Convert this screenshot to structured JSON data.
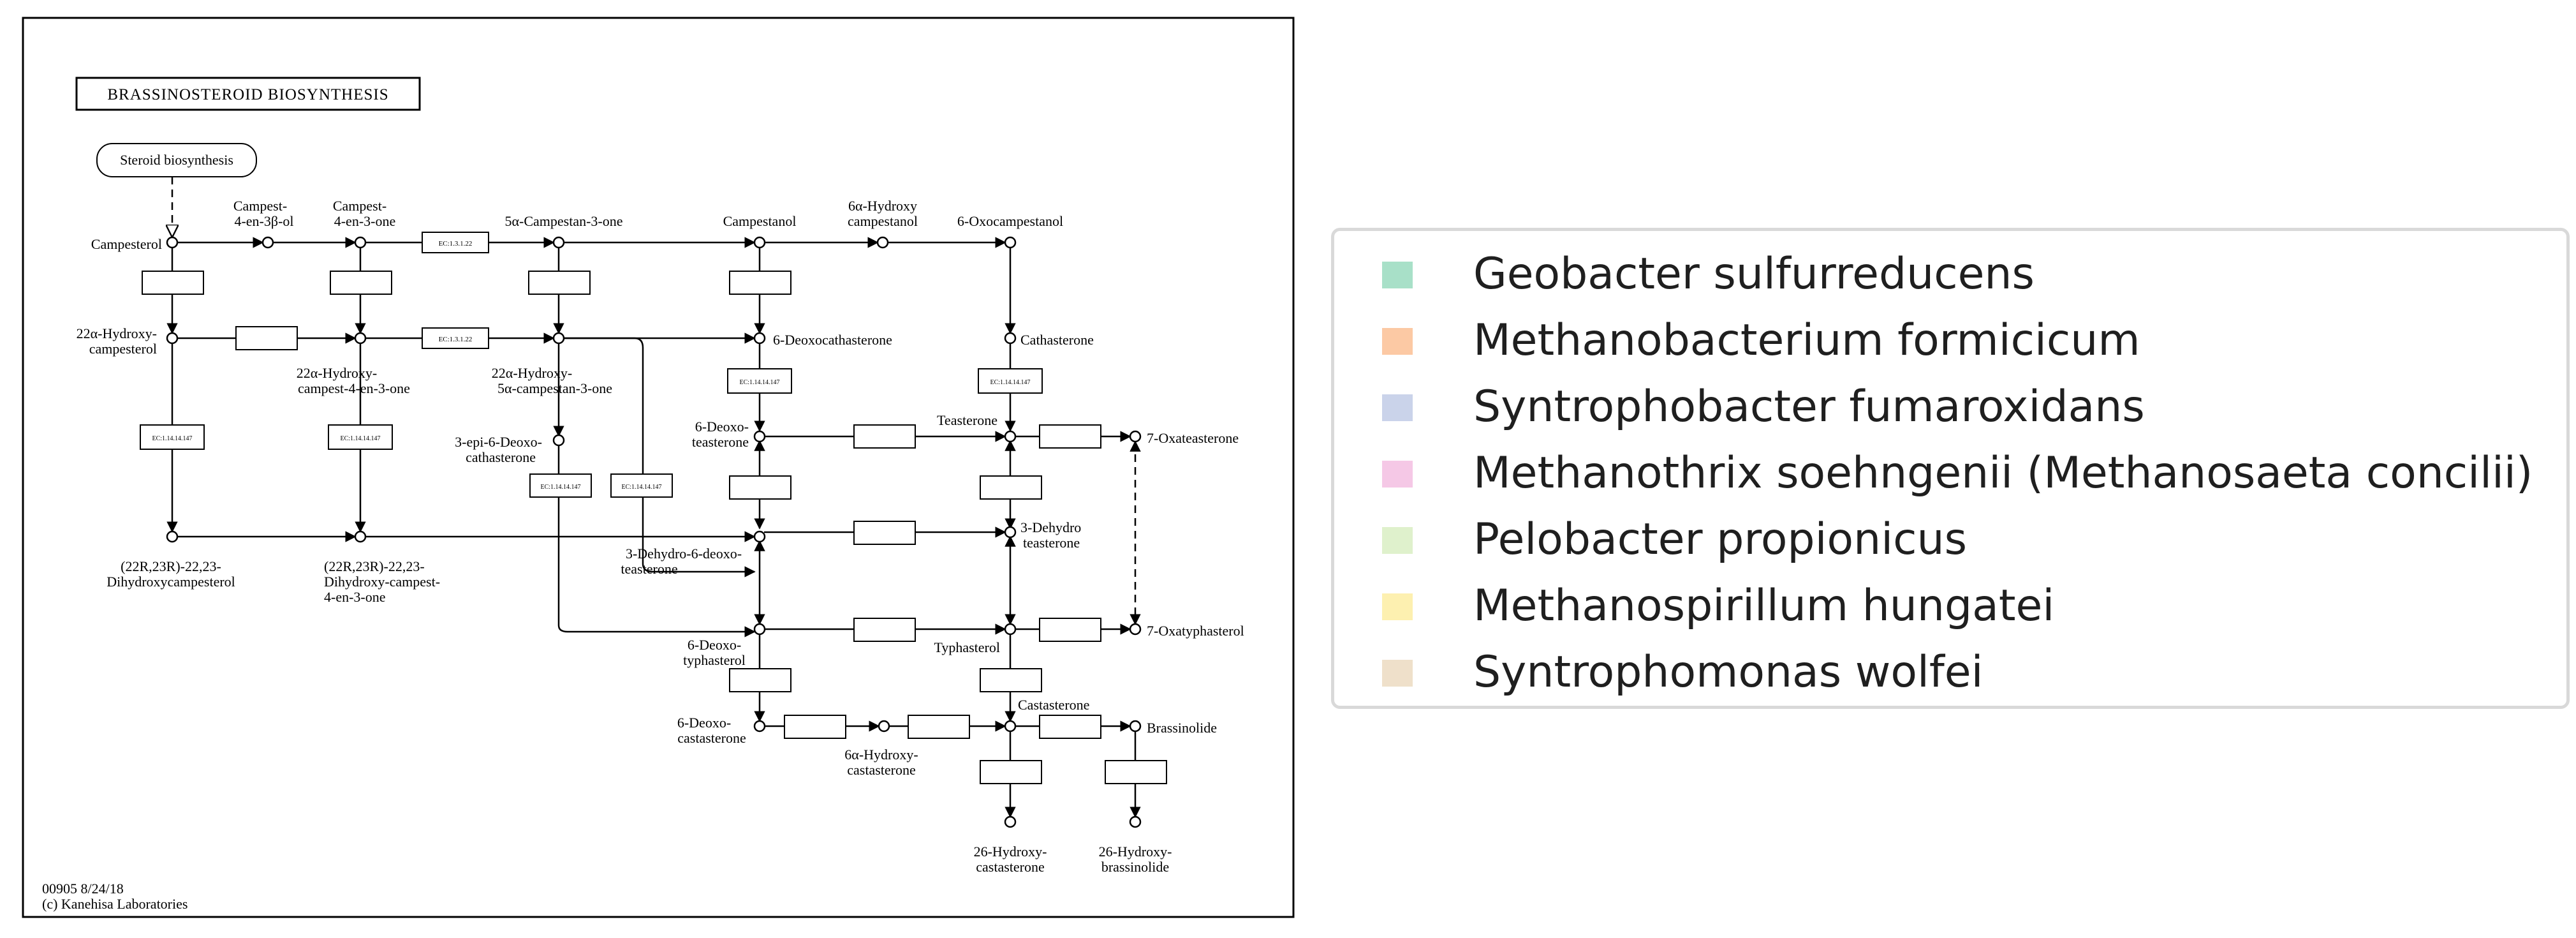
{
  "diagram": {
    "title": "BRASSINOSTEROID BIOSYNTHESIS",
    "link_box": "Steroid biosynthesis",
    "footer_id": "00905 8/24/18",
    "footer_credit": "(c) Kanehisa Laboratories",
    "ec_numbers": {
      "ec_13122": "EC:1.3.1.22",
      "ec_1141414147": "EC:1.14.14.147"
    },
    "compounds": {
      "campesterol": "Campesterol",
      "campest_4en3b_a": "Campest-",
      "campest_4en3b_b": "4-en-3β-ol",
      "campest_4en3one_a": "Campest-",
      "campest_4en3one_b": "4-en-3-one",
      "campestan3one": "5α-Campestan-3-one",
      "campestanol": "Campestanol",
      "hydroxycampestanol_a": "6α-Hydroxy",
      "hydroxycampestanol_b": "campestanol",
      "oxocampestanol": "6-Oxocampestanol",
      "hydroxycampesterol_a": "22α-Hydroxy-",
      "hydroxycampesterol_b": "campesterol",
      "hydroxycampest4en3one_a": "22α-Hydroxy-",
      "hydroxycampest4en3one_b": "campest-4-en-3-one",
      "hydroxycampestan3one_a": "22α-Hydroxy-",
      "hydroxycampestan3one_b": "5α-campestan-3-one",
      "deoxocathasterone": "6-Deoxocathasterone",
      "cathasterone": "Cathasterone",
      "epideoxocathasterone_a": "3-epi-6-Deoxo-",
      "epideoxocathasterone_b": "cathasterone",
      "deoxoteasterone_a": "6-Deoxo-",
      "deoxoteasterone_b": "teasterone",
      "teasterone": "Teasterone",
      "oxateasterone": "7-Oxateasterone",
      "dihydroxycampesterol_a": "(22R,23R)-22,23-",
      "dihydroxycampesterol_b": "Dihydroxycampesterol",
      "dihydroxycampest_a": "(22R,23R)-22,23-",
      "dihydroxycampest_b": "Dihydroxy-campest-",
      "dihydroxycampest_c": "4-en-3-one",
      "dehydrodeoxoteasterone_a": "3-Dehydro-6-deoxo-",
      "dehydrodeoxoteasterone_b": "teasterone",
      "dehydroteasterone_a": "3-Dehydro",
      "dehydroteasterone_b": "teasterone",
      "deoxotyphasterol_a": "6-Deoxo-",
      "deoxotyphasterol_b": "typhasterol",
      "typhasterol": "Typhasterol",
      "oxatyphasterol": "7-Oxatyphasterol",
      "deoxocastasterone_a": "6-Deoxo-",
      "deoxocastasterone_b": "castasterone",
      "hydroxycastasterone_a": "6α-Hydroxy-",
      "hydroxycastasterone_b": "castasterone",
      "castasterone": "Castasterone",
      "brassinolide": "Brassinolide",
      "hydroxycastasterone26_a": "26-Hydroxy-",
      "hydroxycastasterone26_b": "castasterone",
      "hydroxybrassinolide_a": "26-Hydroxy-",
      "hydroxybrassinolide_b": "brassinolide"
    }
  },
  "legend": {
    "items": [
      {
        "label": "Geobacter sulfurreducens",
        "color": "#a8e0c8"
      },
      {
        "label": "Methanobacterium formicicum",
        "color": "#fcc9a4"
      },
      {
        "label": "Syntrophobacter fumaroxidans",
        "color": "#cad3ea"
      },
      {
        "label": "Methanothrix soehngenii (Methanosaeta concilii)",
        "color": "#f5c8e6"
      },
      {
        "label": "Pelobacter propionicus",
        "color": "#dff1cc"
      },
      {
        "label": "Methanospirillum hungatei",
        "color": "#fdf0b0"
      },
      {
        "label": "Syntrophomonas wolfei",
        "color": "#efe0ca"
      }
    ]
  }
}
